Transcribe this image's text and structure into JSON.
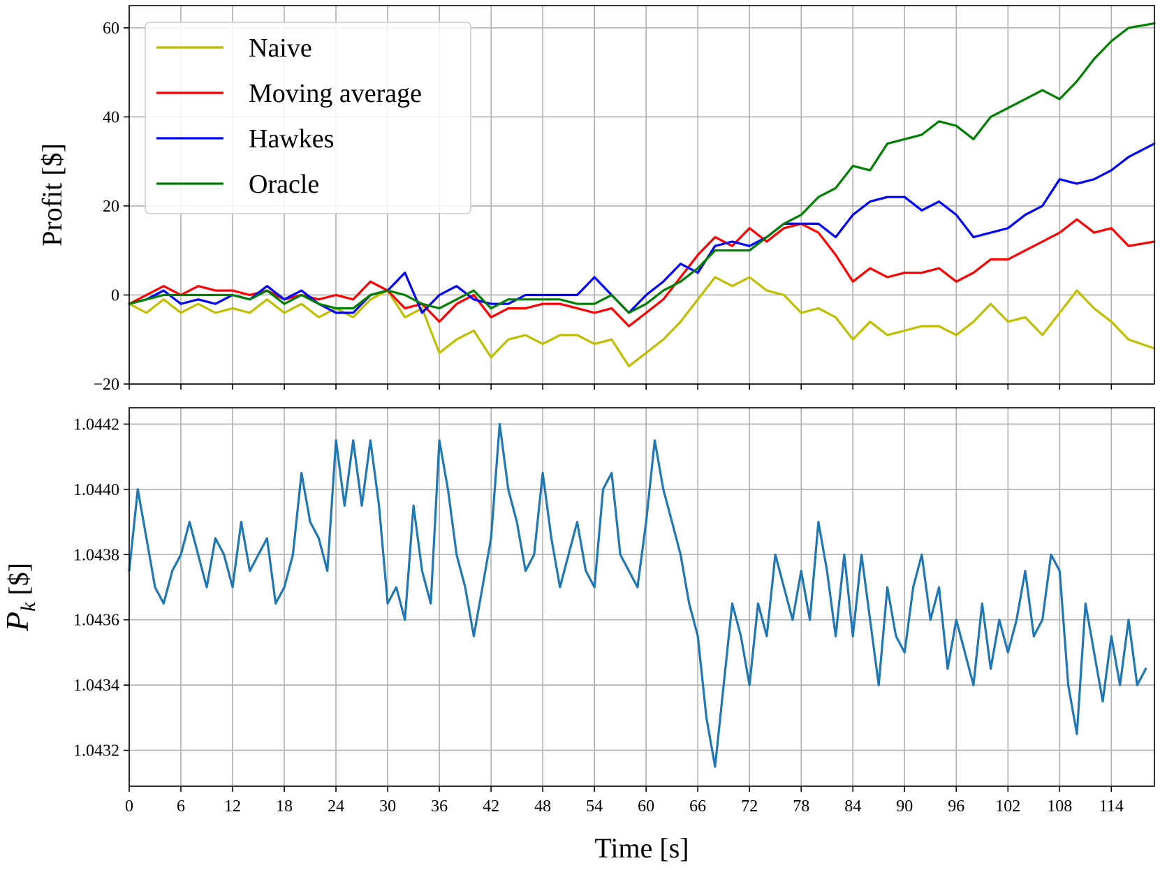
{
  "chart_data": [
    {
      "type": "line",
      "title": "",
      "xlabel": "",
      "ylabel": "Profit [$]",
      "xlim": [
        0,
        119
      ],
      "ylim": [
        -20,
        65
      ],
      "xticks": [
        0,
        6,
        12,
        18,
        24,
        30,
        36,
        42,
        48,
        54,
        60,
        66,
        72,
        78,
        84,
        90,
        96,
        102,
        108,
        114
      ],
      "yticks": [
        -20,
        0,
        20,
        40,
        60
      ],
      "ytick_labels": [
        "−20",
        "0",
        "20",
        "40",
        "60"
      ],
      "grid": true,
      "legend_position": "upper-left",
      "series": [
        {
          "name": "Naive",
          "color": "#bfbf00",
          "x": [
            0,
            2,
            4,
            6,
            8,
            10,
            12,
            14,
            16,
            18,
            20,
            22,
            24,
            26,
            28,
            30,
            32,
            34,
            36,
            38,
            40,
            42,
            44,
            46,
            48,
            50,
            52,
            54,
            56,
            58,
            60,
            62,
            64,
            66,
            68,
            70,
            72,
            74,
            76,
            78,
            80,
            82,
            84,
            86,
            88,
            90,
            92,
            94,
            96,
            98,
            100,
            102,
            104,
            106,
            108,
            110,
            112,
            114,
            116,
            119
          ],
          "values": [
            -2,
            -4,
            -1,
            -4,
            -2,
            -4,
            -3,
            -4,
            -1,
            -4,
            -2,
            -5,
            -3,
            -5,
            -1,
            1,
            -5,
            -3,
            -13,
            -10,
            -8,
            -14,
            -10,
            -9,
            -11,
            -9,
            -9,
            -11,
            -10,
            -16,
            -13,
            -10,
            -6,
            -1,
            4,
            2,
            4,
            1,
            0,
            -4,
            -3,
            -5,
            -10,
            -6,
            -9,
            -8,
            -7,
            -7,
            -9,
            -6,
            -2,
            -6,
            -5,
            -9,
            -4,
            1,
            -3,
            -6,
            -10,
            -12
          ]
        },
        {
          "name": "Moving average",
          "color": "#ff0000",
          "x": [
            0,
            2,
            4,
            6,
            8,
            10,
            12,
            14,
            16,
            18,
            20,
            22,
            24,
            26,
            28,
            30,
            32,
            34,
            36,
            38,
            40,
            42,
            44,
            46,
            48,
            50,
            52,
            54,
            56,
            58,
            60,
            62,
            64,
            66,
            68,
            70,
            72,
            74,
            76,
            78,
            80,
            82,
            84,
            86,
            88,
            90,
            92,
            94,
            96,
            98,
            100,
            102,
            104,
            106,
            108,
            110,
            112,
            114,
            116,
            119
          ],
          "values": [
            -2,
            0,
            2,
            0,
            2,
            1,
            1,
            0,
            1,
            -1,
            0,
            -1,
            0,
            -1,
            3,
            1,
            -3,
            -2,
            -6,
            -2,
            0,
            -5,
            -3,
            -3,
            -2,
            -2,
            -3,
            -4,
            -3,
            -7,
            -4,
            -1,
            4,
            9,
            13,
            11,
            15,
            12,
            15,
            16,
            14,
            9,
            3,
            6,
            4,
            5,
            5,
            6,
            3,
            5,
            8,
            8,
            10,
            12,
            14,
            17,
            14,
            15,
            11,
            12
          ]
        },
        {
          "name": "Hawkes",
          "color": "#0000ff",
          "x": [
            0,
            2,
            4,
            6,
            8,
            10,
            12,
            14,
            16,
            18,
            20,
            22,
            24,
            26,
            28,
            30,
            32,
            34,
            36,
            38,
            40,
            42,
            44,
            46,
            48,
            50,
            52,
            54,
            56,
            58,
            60,
            62,
            64,
            66,
            68,
            70,
            72,
            74,
            76,
            78,
            80,
            82,
            84,
            86,
            88,
            90,
            92,
            94,
            96,
            98,
            100,
            102,
            104,
            106,
            108,
            110,
            112,
            114,
            116,
            119
          ],
          "values": [
            -2,
            -1,
            1,
            -2,
            -1,
            -2,
            0,
            -1,
            2,
            -1,
            1,
            -2,
            -4,
            -4,
            0,
            1,
            5,
            -4,
            0,
            2,
            -1,
            -2,
            -2,
            0,
            0,
            0,
            0,
            4,
            0,
            -4,
            0,
            3,
            7,
            5,
            11,
            12,
            11,
            13,
            16,
            16,
            16,
            13,
            18,
            21,
            22,
            22,
            19,
            21,
            18,
            13,
            14,
            15,
            18,
            20,
            26,
            25,
            26,
            28,
            31,
            34
          ]
        },
        {
          "name": "Oracle",
          "color": "#008000",
          "x": [
            0,
            2,
            4,
            6,
            8,
            10,
            12,
            14,
            16,
            18,
            20,
            22,
            24,
            26,
            28,
            30,
            32,
            34,
            36,
            38,
            40,
            42,
            44,
            46,
            48,
            50,
            52,
            54,
            56,
            58,
            60,
            62,
            64,
            66,
            68,
            70,
            72,
            74,
            76,
            78,
            80,
            82,
            84,
            86,
            88,
            90,
            92,
            94,
            96,
            98,
            100,
            102,
            104,
            106,
            108,
            110,
            112,
            114,
            116,
            119
          ],
          "values": [
            -2,
            -1,
            0,
            0,
            0,
            0,
            0,
            -1,
            1,
            -2,
            0,
            -2,
            -3,
            -3,
            0,
            1,
            0,
            -2,
            -3,
            -1,
            1,
            -3,
            -1,
            -1,
            -1,
            -1,
            -2,
            -2,
            0,
            -4,
            -2,
            1,
            3,
            6,
            10,
            10,
            10,
            13,
            16,
            18,
            22,
            24,
            29,
            28,
            34,
            35,
            36,
            39,
            38,
            35,
            40,
            42,
            44,
            46,
            44,
            48,
            53,
            57,
            60,
            61
          ]
        }
      ]
    },
    {
      "type": "line",
      "title": "",
      "xlabel": "Time [s]",
      "ylabel": "P_k [$]",
      "ylabel_main": "P",
      "ylabel_sub": "k",
      "ylabel_unit": "[$]",
      "xlim": [
        0,
        119
      ],
      "ylim": [
        1.04309,
        1.04425
      ],
      "xticks": [
        0,
        6,
        12,
        18,
        24,
        30,
        36,
        42,
        48,
        54,
        60,
        66,
        72,
        78,
        84,
        90,
        96,
        102,
        108,
        114
      ],
      "yticks": [
        1.0432,
        1.0434,
        1.0436,
        1.0438,
        1.044,
        1.0442
      ],
      "ytick_labels": [
        "1.0432",
        "1.0434",
        "1.0436",
        "1.0438",
        "1.0440",
        "1.0442"
      ],
      "grid": true,
      "series": [
        {
          "name": "P_k",
          "color": "#1f77b4",
          "x_start": 0,
          "x_step": 1,
          "values": [
            1.04375,
            1.044,
            1.04385,
            1.0437,
            1.04365,
            1.04375,
            1.0438,
            1.0439,
            1.0438,
            1.0437,
            1.04385,
            1.0438,
            1.0437,
            1.0439,
            1.04375,
            1.0438,
            1.04385,
            1.04365,
            1.0437,
            1.0438,
            1.04405,
            1.0439,
            1.04385,
            1.04375,
            1.04415,
            1.04395,
            1.04415,
            1.04395,
            1.04415,
            1.04395,
            1.04365,
            1.0437,
            1.0436,
            1.04395,
            1.04375,
            1.04365,
            1.04415,
            1.044,
            1.0438,
            1.0437,
            1.04355,
            1.0437,
            1.04385,
            1.0442,
            1.044,
            1.0439,
            1.04375,
            1.0438,
            1.04405,
            1.04385,
            1.0437,
            1.0438,
            1.0439,
            1.04375,
            1.0437,
            1.044,
            1.04405,
            1.0438,
            1.04375,
            1.0437,
            1.0439,
            1.04415,
            1.044,
            1.0439,
            1.0438,
            1.04365,
            1.04355,
            1.0433,
            1.04315,
            1.0434,
            1.04365,
            1.04355,
            1.0434,
            1.04365,
            1.04355,
            1.0438,
            1.0437,
            1.0436,
            1.04375,
            1.0436,
            1.0439,
            1.04375,
            1.04355,
            1.0438,
            1.04355,
            1.0438,
            1.0436,
            1.0434,
            1.0437,
            1.04355,
            1.0435,
            1.0437,
            1.0438,
            1.0436,
            1.0437,
            1.04345,
            1.0436,
            1.0435,
            1.0434,
            1.04365,
            1.04345,
            1.0436,
            1.0435,
            1.0436,
            1.04375,
            1.04355,
            1.0436,
            1.0438,
            1.04375,
            1.0434,
            1.04325,
            1.04365,
            1.0435,
            1.04335,
            1.04355,
            1.0434,
            1.0436,
            1.0434,
            1.04345
          ]
        }
      ]
    }
  ]
}
